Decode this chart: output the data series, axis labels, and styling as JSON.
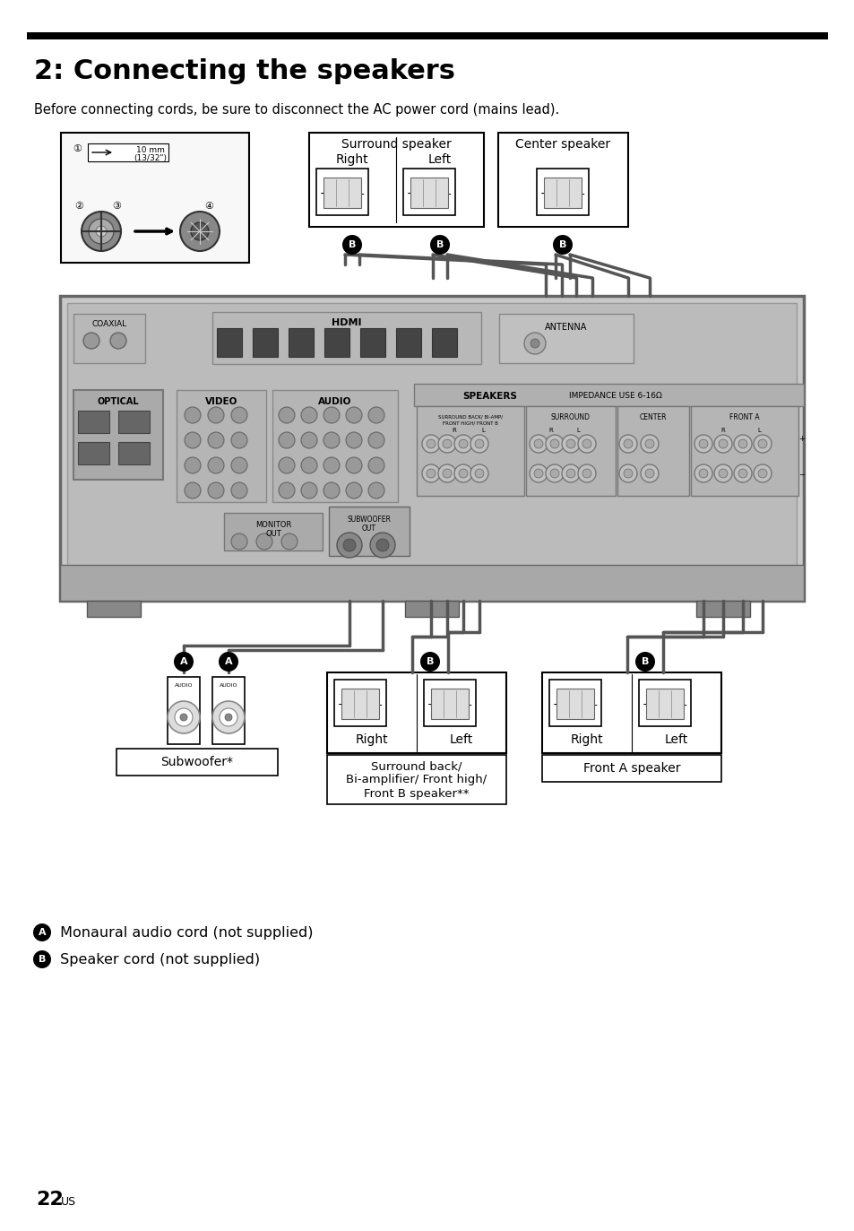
{
  "title": "2: Connecting the speakers",
  "subtitle": "Before connecting cords, be sure to disconnect the AC power cord (mains lead).",
  "page_number": "22",
  "page_suffix": "US",
  "bg_color": "#ffffff",
  "title_bar_color": "#000000",
  "label_surround_speaker": "Surround speaker",
  "label_center_speaker": "Center speaker",
  "label_right": "Right",
  "label_left": "Left",
  "label_subwoofer": "Subwoofer*",
  "label_surround_back_line1": "Surround back/",
  "label_surround_back_line2": "Bi-amplifier/ Front high/",
  "label_surround_back_line3": "Front B speaker**",
  "label_front_a": "Front A speaker",
  "legend_a_text": "Monaural audio cord (not supplied)",
  "legend_b_text": "Speaker cord (not supplied)",
  "receiver_color": "#c8c8c8",
  "receiver_border": "#666666",
  "terminal_color": "#e0e0e0",
  "wire_color": "#555555",
  "wire_lw": 2.5,
  "title_fontsize": 22,
  "body_fontsize": 10.5,
  "small_fontsize": 8.5
}
